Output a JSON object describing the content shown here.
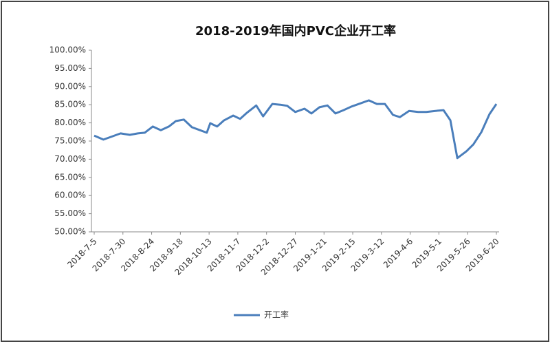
{
  "chart_data": {
    "type": "line",
    "title": "2018-2019年国内PVC企业开工率",
    "x": [
      "2018-7-5",
      "2018-7-13",
      "2018-7-21",
      "2018-7-28",
      "2018-8-5",
      "2018-8-12",
      "2018-8-18",
      "2018-8-25",
      "2018-9-1",
      "2018-9-8",
      "2018-9-14",
      "2018-9-21",
      "2018-9-28",
      "2018-10-5",
      "2018-10-11",
      "2018-10-14",
      "2018-10-20",
      "2018-10-26",
      "2018-11-3",
      "2018-11-9",
      "2018-11-15",
      "2018-11-23",
      "2018-11-29",
      "2018-12-7",
      "2018-12-14",
      "2018-12-20",
      "2018-12-27",
      "2019-1-4",
      "2019-1-10",
      "2019-1-17",
      "2019-1-24",
      "2019-1-31",
      "2019-2-7",
      "2019-2-14",
      "2019-2-22",
      "2019-3-1",
      "2019-3-8",
      "2019-3-15",
      "2019-3-22",
      "2019-3-28",
      "2019-4-5",
      "2019-4-13",
      "2019-4-20",
      "2019-4-28",
      "2019-5-5",
      "2019-5-11",
      "2019-5-17",
      "2019-5-25",
      "2019-5-31",
      "2019-6-7",
      "2019-6-14",
      "2019-6-20"
    ],
    "series": [
      {
        "name": "开工率",
        "color": "#4a7ebb",
        "values": [
          76.5,
          75.4,
          76.3,
          77.1,
          76.7,
          77.1,
          77.3,
          79.0,
          78.0,
          79.0,
          80.5,
          80.9,
          78.8,
          78.0,
          77.3,
          79.9,
          79.0,
          80.7,
          82.0,
          81.1,
          82.8,
          84.8,
          81.8,
          85.2,
          85.0,
          84.7,
          83.0,
          83.9,
          82.6,
          84.3,
          84.8,
          82.6,
          83.5,
          84.5,
          85.4,
          86.2,
          85.2,
          85.2,
          82.2,
          81.6,
          83.3,
          83.0,
          83.0,
          83.3,
          83.5,
          80.7,
          70.3,
          72.2,
          74.1,
          77.5,
          82.4,
          85.2
        ]
      }
    ],
    "xlim": [
      "2018-7-5",
      "2019-6-20"
    ],
    "xticks": [
      "2018-7-5",
      "2018-7-30",
      "2018-8-24",
      "2018-9-18",
      "2018-10-13",
      "2018-11-7",
      "2018-12-2",
      "2018-12-27",
      "2019-1-21",
      "2019-2-15",
      "2019-3-12",
      "2019-4-6",
      "2019-5-1",
      "2019-5-26",
      "2019-6-20"
    ],
    "ylim": [
      50,
      100
    ],
    "yticks": [
      {
        "value": 50,
        "label": "50.00%"
      },
      {
        "value": 55,
        "label": "55.00%"
      },
      {
        "value": 60,
        "label": "60.00%"
      },
      {
        "value": 65,
        "label": "65.00%"
      },
      {
        "value": 70,
        "label": "70.00%"
      },
      {
        "value": 75,
        "label": "75.00%"
      },
      {
        "value": 80,
        "label": "80.00%"
      },
      {
        "value": 85,
        "label": "85.00%"
      },
      {
        "value": 90,
        "label": "90.00%"
      },
      {
        "value": 95,
        "label": "95.00%"
      },
      {
        "value": 100,
        "label": "100.00%"
      }
    ],
    "grid": false,
    "legend": "bottom"
  }
}
